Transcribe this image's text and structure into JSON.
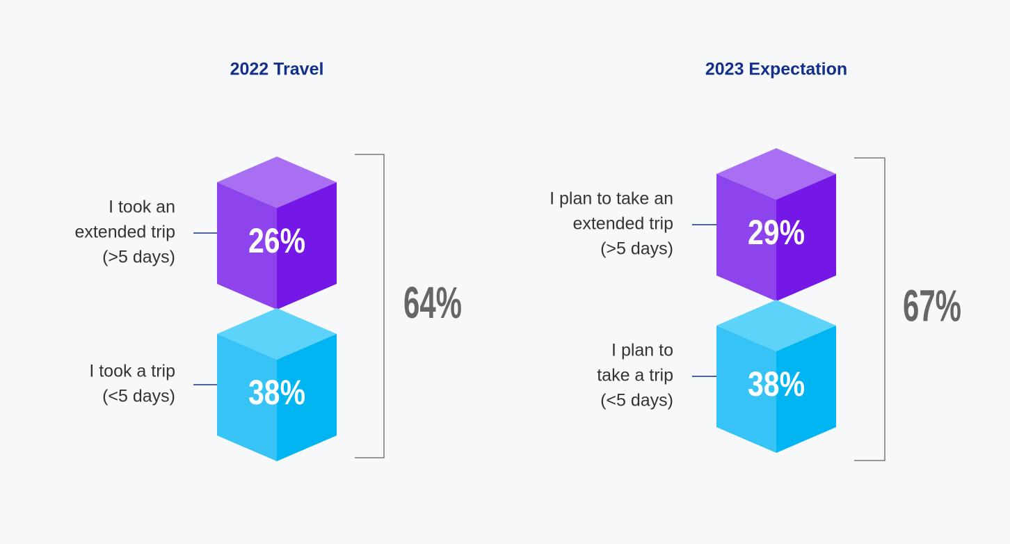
{
  "panels": [
    {
      "title": "2022 Travel",
      "items": [
        {
          "label": [
            "I took an",
            "extended trip",
            "(>5 days)"
          ],
          "value": "26%"
        },
        {
          "label": [
            "I took a trip",
            "(<5 days)"
          ],
          "value": "38%"
        }
      ],
      "total": "64%"
    },
    {
      "title": "2023 Expectation",
      "items": [
        {
          "label": [
            "I plan to take an",
            "extended trip",
            "(>5 days)"
          ],
          "value": "29%"
        },
        {
          "label": [
            "I plan to",
            "take a trip",
            "(<5 days)"
          ],
          "value": "38%"
        }
      ],
      "total": "67%"
    }
  ]
}
